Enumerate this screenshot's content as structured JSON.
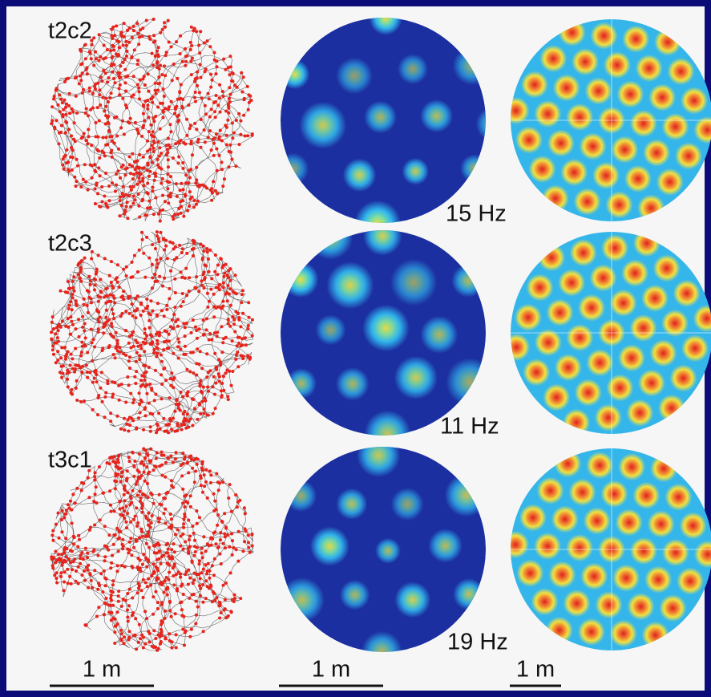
{
  "panels": [
    {
      "label": "t2c2",
      "peak_rate": "15 Hz"
    },
    {
      "label": "t2c3",
      "peak_rate": "11 Hz"
    },
    {
      "label": "t3c1",
      "peak_rate": "19 Hz"
    }
  ],
  "scale_bars": [
    "1 m",
    "1 m",
    "1 m"
  ]
}
